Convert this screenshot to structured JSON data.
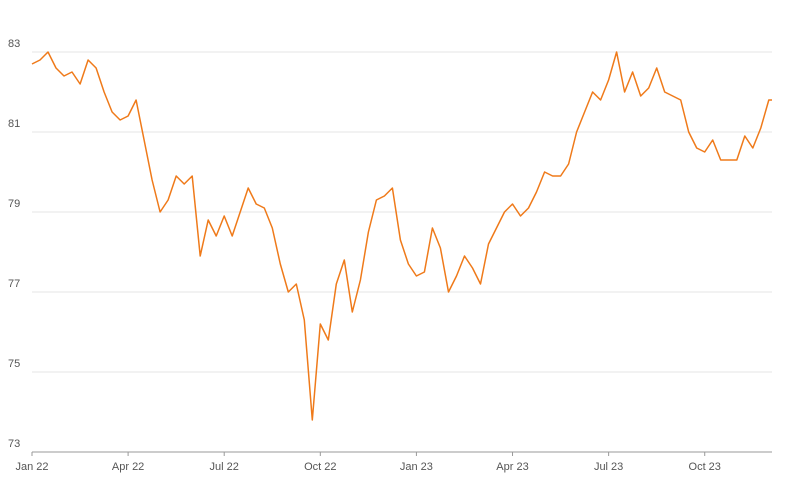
{
  "chart_data": {
    "type": "line",
    "x": [
      0,
      0.25,
      0.5,
      0.75,
      1,
      1.25,
      1.5,
      1.75,
      2,
      2.25,
      2.5,
      2.75,
      3,
      3.25,
      3.5,
      3.75,
      4,
      4.25,
      4.5,
      4.75,
      5,
      5.25,
      5.5,
      5.75,
      6,
      6.25,
      6.5,
      6.75,
      7,
      7.25,
      7.5,
      7.75,
      8,
      8.25,
      8.5,
      8.75,
      9,
      9.25,
      9.5,
      9.75,
      10,
      10.25,
      10.5,
      10.75,
      11,
      11.25,
      11.5,
      11.75,
      12,
      12.25,
      12.5,
      12.75,
      13,
      13.25,
      13.5,
      13.75,
      14,
      14.25,
      14.5,
      14.75,
      15,
      15.25,
      15.5,
      15.75,
      16,
      16.25,
      16.5,
      16.75,
      17,
      17.25,
      17.5,
      17.75,
      18,
      18.25,
      18.5,
      18.75,
      19,
      19.25,
      19.5,
      19.75,
      20,
      20.25,
      20.5,
      20.75,
      21,
      21.25,
      21.5,
      21.75,
      22,
      22.25,
      22.5,
      22.75,
      23,
      23.1
    ],
    "values": [
      82.7,
      82.8,
      83.0,
      82.6,
      82.4,
      82.5,
      82.2,
      82.8,
      82.6,
      82.0,
      81.5,
      81.3,
      81.4,
      81.8,
      80.8,
      79.8,
      79.0,
      79.3,
      79.9,
      79.7,
      79.9,
      77.9,
      78.8,
      78.4,
      78.9,
      78.4,
      79.0,
      79.6,
      79.2,
      79.1,
      78.6,
      77.7,
      77.0,
      77.2,
      76.3,
      73.8,
      76.2,
      75.8,
      77.2,
      77.8,
      76.5,
      77.3,
      78.5,
      79.3,
      79.4,
      79.6,
      78.3,
      77.7,
      77.4,
      77.5,
      78.6,
      78.1,
      77.0,
      77.4,
      77.9,
      77.6,
      77.2,
      78.2,
      78.6,
      79.0,
      79.2,
      78.9,
      79.1,
      79.5,
      80.0,
      79.9,
      79.9,
      80.2,
      81.0,
      81.5,
      82.0,
      81.8,
      82.3,
      83.0,
      82.0,
      82.5,
      81.9,
      82.1,
      82.6,
      82.0,
      81.9,
      81.8,
      81.0,
      80.6,
      80.5,
      80.8,
      80.3,
      80.3,
      80.3,
      80.9,
      80.6,
      81.1,
      81.8,
      81.8
    ],
    "color": "#ef7a1a",
    "xlim": [
      0,
      23.1
    ],
    "xticks": [
      {
        "value": 0,
        "label": "Jan 22"
      },
      {
        "value": 3,
        "label": "Apr 22"
      },
      {
        "value": 6,
        "label": "Jul 22"
      },
      {
        "value": 9,
        "label": "Oct 22"
      },
      {
        "value": 12,
        "label": "Jan 23"
      },
      {
        "value": 15,
        "label": "Apr 23"
      },
      {
        "value": 18,
        "label": "Jul 23"
      },
      {
        "value": 21,
        "label": "Oct 23"
      }
    ],
    "ylim": [
      73,
      83
    ],
    "yticks": [
      73,
      75,
      77,
      79,
      81,
      83
    ],
    "grid": true
  }
}
